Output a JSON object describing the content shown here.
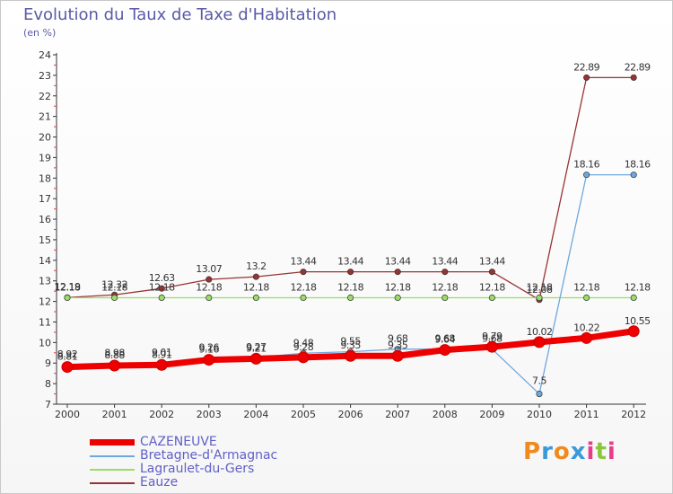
{
  "header": {
    "title": "Evolution du Taux de Taxe d'Habitation",
    "subtitle": "(en %)"
  },
  "logo": {
    "letters": [
      "P",
      "r",
      "o",
      "x",
      "i",
      "t",
      "i"
    ],
    "colors": [
      "#f08a1c",
      "#3a9ad9",
      "#f08a1c",
      "#3a9ad9",
      "#e83b8a",
      "#8cc63f",
      "#e83b8a"
    ]
  },
  "chart_data": {
    "type": "line",
    "x": [
      "2000",
      "2001",
      "2002",
      "2003",
      "2004",
      "2005",
      "2006",
      "2007",
      "2008",
      "2009",
      "2010",
      "2011",
      "2012"
    ],
    "ylim": [
      7,
      24
    ],
    "yticks": [
      7,
      8,
      9,
      10,
      11,
      12,
      13,
      14,
      15,
      16,
      17,
      18,
      19,
      20,
      21,
      22,
      23,
      24
    ],
    "grid": false,
    "legend_position": "bottom-left",
    "series": [
      {
        "name": "CAZENEUVE",
        "color": "#ee0000",
        "values": [
          8.81,
          8.88,
          8.91,
          9.16,
          9.21,
          9.28,
          9.35,
          9.35,
          9.64,
          9.79,
          10.02,
          10.22,
          10.55
        ],
        "labels": [
          "8.81",
          "8.88",
          "8.91",
          "9.16",
          "9.21",
          "9.28",
          "9.35",
          "9.35",
          "9.64",
          "9.79",
          "10.02",
          "10.22",
          "10.55"
        ]
      },
      {
        "name": "Bretagne-d'Armagnac",
        "color": "#6fa8dc",
        "values": [
          8.92,
          8.98,
          9.01,
          9.26,
          9.27,
          9.48,
          9.55,
          9.68,
          9.68,
          9.68,
          7.5,
          18.16,
          18.16
        ],
        "labels": [
          "8.92",
          "8.98",
          "9.01",
          "9.26",
          "9.27",
          "9.48",
          "9.55",
          "9.68",
          "9.68",
          "9.68",
          "7.5",
          "18.16",
          "18.16"
        ]
      },
      {
        "name": "Lagraulet-du-Gers",
        "color": "#99dd66",
        "values": [
          12.18,
          12.18,
          12.18,
          12.18,
          12.18,
          12.18,
          12.18,
          12.18,
          12.18,
          12.18,
          12.18,
          12.18,
          12.18
        ],
        "labels": [
          "12.18",
          "12.18",
          "12.18",
          "12.18",
          "12.18",
          "12.18",
          "12.18",
          "12.18",
          "12.18",
          "12.18",
          "12.18",
          "12.18",
          "12.18"
        ]
      },
      {
        "name": "Eauze",
        "color": "#993333",
        "values": [
          12.19,
          12.32,
          12.63,
          13.07,
          13.2,
          13.44,
          13.44,
          13.44,
          13.44,
          13.44,
          12.08,
          22.89,
          22.89
        ],
        "labels": [
          "12.19",
          "12.32",
          "12.63",
          "13.07",
          "13.2",
          "13.44",
          "13.44",
          "13.44",
          "13.44",
          "13.44",
          "12.08",
          "22.89",
          "22.89"
        ]
      }
    ]
  }
}
